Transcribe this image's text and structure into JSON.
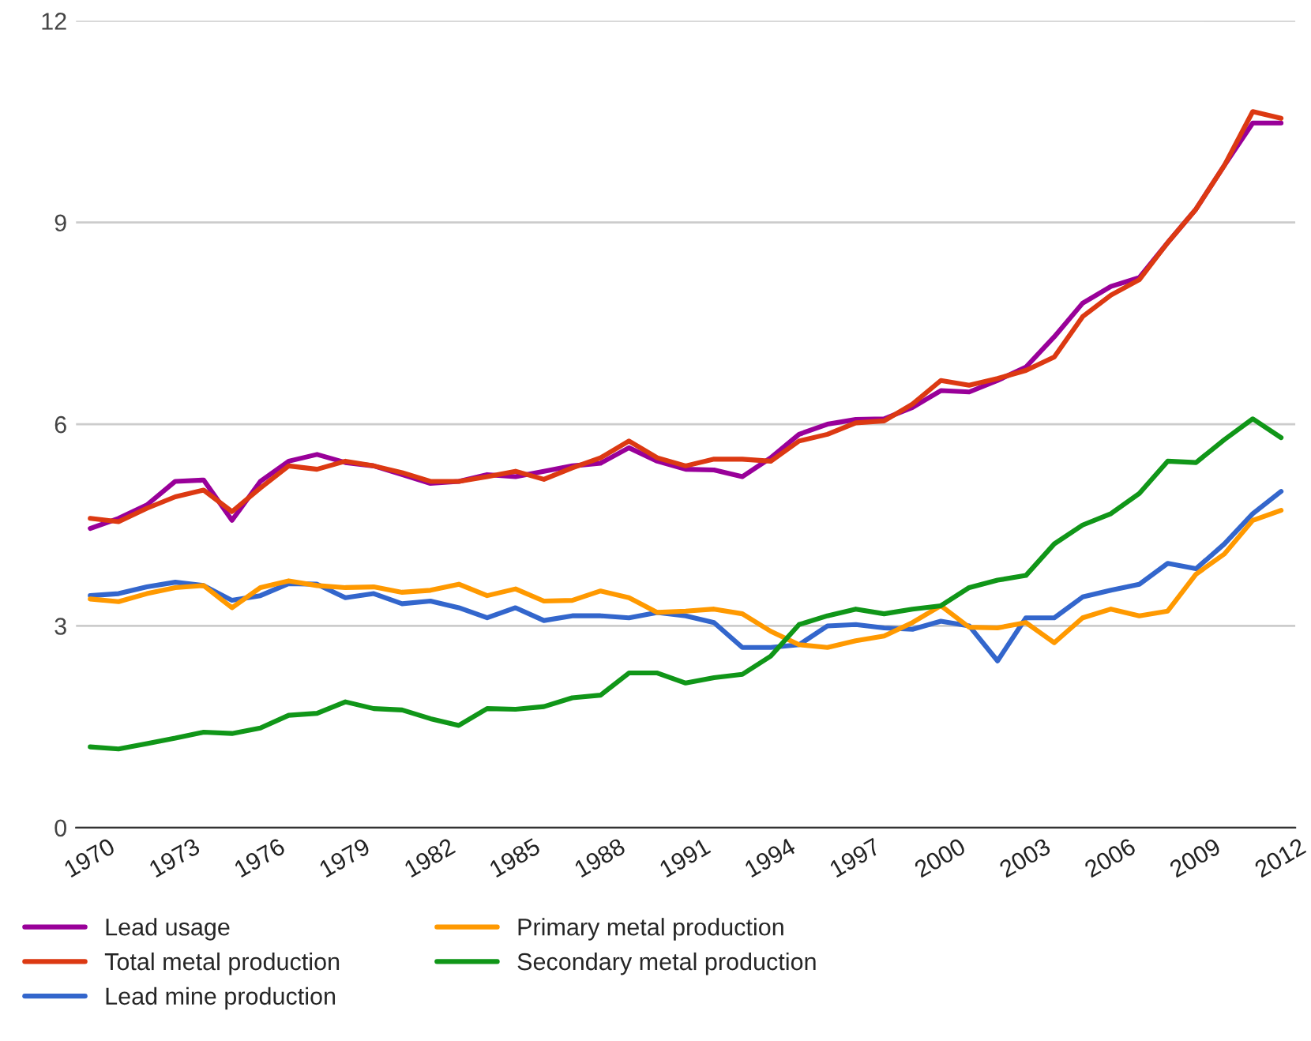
{
  "chart_data": {
    "type": "line",
    "x": [
      1970,
      1971,
      1972,
      1973,
      1974,
      1975,
      1976,
      1977,
      1978,
      1979,
      1980,
      1981,
      1982,
      1983,
      1984,
      1985,
      1986,
      1987,
      1988,
      1989,
      1990,
      1991,
      1992,
      1993,
      1994,
      1995,
      1996,
      1997,
      1998,
      1999,
      2000,
      2001,
      2002,
      2003,
      2004,
      2005,
      2006,
      2007,
      2008,
      2009,
      2010,
      2011,
      2012
    ],
    "series": [
      {
        "name": "Lead usage",
        "color": "#990099",
        "values": [
          4.45,
          4.6,
          4.8,
          5.15,
          5.17,
          4.57,
          5.15,
          5.45,
          5.55,
          5.43,
          5.38,
          5.25,
          5.12,
          5.15,
          5.25,
          5.22,
          5.3,
          5.38,
          5.42,
          5.65,
          5.45,
          5.33,
          5.32,
          5.22,
          5.5,
          5.85,
          6.0,
          6.07,
          6.08,
          6.25,
          6.5,
          6.48,
          6.65,
          6.85,
          7.3,
          7.8,
          8.05,
          8.18,
          8.7,
          9.2,
          9.85,
          10.48,
          10.48
        ]
      },
      {
        "name": "Total metal production",
        "color": "#dc3912",
        "values": [
          4.6,
          4.55,
          4.75,
          4.92,
          5.02,
          4.7,
          5.05,
          5.38,
          5.33,
          5.45,
          5.38,
          5.28,
          5.15,
          5.15,
          5.22,
          5.3,
          5.18,
          5.35,
          5.5,
          5.75,
          5.5,
          5.38,
          5.48,
          5.48,
          5.45,
          5.75,
          5.85,
          6.02,
          6.05,
          6.3,
          6.65,
          6.58,
          6.68,
          6.8,
          7.0,
          7.6,
          7.92,
          8.15,
          8.7,
          9.2,
          9.85,
          10.65,
          10.55
        ]
      },
      {
        "name": "Lead mine production",
        "color": "#3366cc",
        "values": [
          3.45,
          3.48,
          3.58,
          3.65,
          3.6,
          3.38,
          3.45,
          3.63,
          3.62,
          3.42,
          3.48,
          3.33,
          3.37,
          3.27,
          3.12,
          3.27,
          3.08,
          3.15,
          3.15,
          3.12,
          3.2,
          3.15,
          3.05,
          2.68,
          2.68,
          2.72,
          3.0,
          3.02,
          2.97,
          2.95,
          3.07,
          3.0,
          2.48,
          3.12,
          3.12,
          3.43,
          3.53,
          3.62,
          3.93,
          3.85,
          4.22,
          4.67,
          5.0
        ]
      },
      {
        "name": "Primary metal production",
        "color": "#ff9900",
        "values": [
          3.4,
          3.36,
          3.48,
          3.57,
          3.6,
          3.27,
          3.57,
          3.67,
          3.6,
          3.57,
          3.58,
          3.5,
          3.53,
          3.62,
          3.45,
          3.55,
          3.37,
          3.38,
          3.52,
          3.42,
          3.2,
          3.22,
          3.25,
          3.18,
          2.92,
          2.72,
          2.68,
          2.78,
          2.85,
          3.05,
          3.3,
          2.98,
          2.97,
          3.05,
          2.75,
          3.12,
          3.25,
          3.15,
          3.22,
          3.77,
          4.07,
          4.57,
          4.72
        ]
      },
      {
        "name": "Secondary metal production",
        "color": "#109618",
        "values": [
          1.2,
          1.17,
          1.25,
          1.33,
          1.42,
          1.4,
          1.48,
          1.67,
          1.7,
          1.87,
          1.77,
          1.75,
          1.62,
          1.52,
          1.77,
          1.76,
          1.8,
          1.93,
          1.97,
          2.3,
          2.3,
          2.15,
          2.23,
          2.28,
          2.55,
          3.02,
          3.15,
          3.25,
          3.18,
          3.25,
          3.3,
          3.57,
          3.68,
          3.75,
          4.22,
          4.5,
          4.67,
          4.97,
          5.45,
          5.43,
          5.77,
          6.08,
          5.8
        ]
      }
    ],
    "xlim": [
      1969.5,
      2012.5
    ],
    "xticks": [
      1970,
      1973,
      1976,
      1979,
      1982,
      1985,
      1988,
      1991,
      1994,
      1997,
      2000,
      2003,
      2006,
      2009,
      2012
    ],
    "ylim": [
      0,
      12
    ],
    "yticks": [
      0,
      3,
      6,
      9,
      12
    ],
    "grid": "y",
    "legend": "bottom",
    "marker": "none",
    "line_style": "solid"
  }
}
